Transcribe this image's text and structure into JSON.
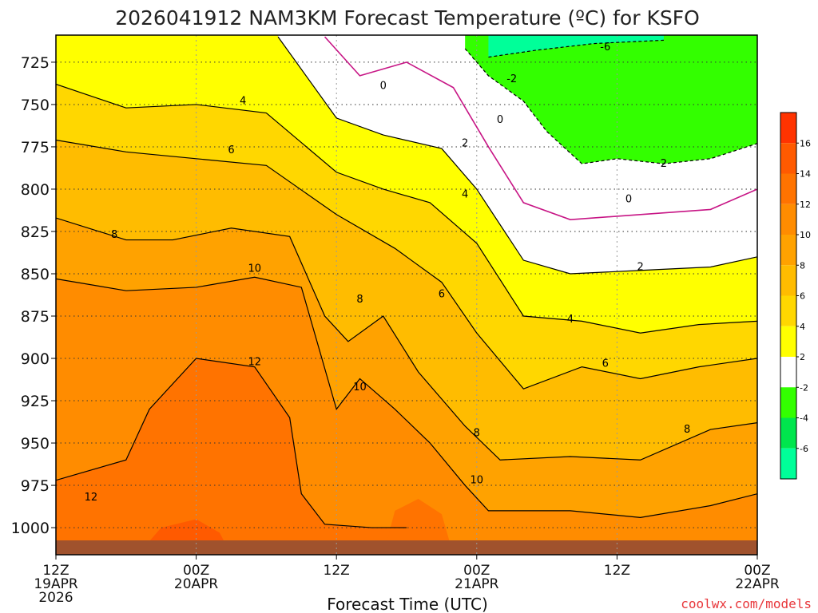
{
  "chart_data": {
    "type": "heatmap",
    "title": "2026041912 NAM3KM Forecast Temperature (ºC) for KSFO",
    "xlabel": "Forecast Time (UTC)",
    "ylabel": "",
    "credit": "coolwx.com/models",
    "y_ticks": [
      "725",
      "750",
      "775",
      "800",
      "825",
      "850",
      "875",
      "900",
      "925",
      "950",
      "975",
      "1000"
    ],
    "y_values": [
      725,
      750,
      775,
      800,
      825,
      850,
      875,
      900,
      925,
      950,
      975,
      1000
    ],
    "ylim": [
      709,
      1016
    ],
    "x_ticks": [
      {
        "hour": 0,
        "lines": [
          "12Z",
          "19APR",
          "2026"
        ]
      },
      {
        "hour": 12,
        "lines": [
          "00Z",
          "20APR"
        ]
      },
      {
        "hour": 24,
        "lines": [
          "12Z"
        ]
      },
      {
        "hour": 36,
        "lines": [
          "00Z",
          "21APR"
        ]
      },
      {
        "hour": 48,
        "lines": [
          "12Z"
        ]
      },
      {
        "hour": 60,
        "lines": [
          "00Z",
          "22APR"
        ]
      }
    ],
    "xlim": [
      0,
      60
    ],
    "colorbar": {
      "ticks": [
        "16",
        "14",
        "12",
        "10",
        "8",
        "6",
        "4",
        "2",
        "-2",
        "-4",
        "-6"
      ],
      "bands": [
        {
          "range": [
            16,
            18
          ],
          "color": "#ff3300"
        },
        {
          "range": [
            14,
            16
          ],
          "color": "#ff5a00"
        },
        {
          "range": [
            12,
            14
          ],
          "color": "#ff7300"
        },
        {
          "range": [
            10,
            12
          ],
          "color": "#ff8c00"
        },
        {
          "range": [
            8,
            10
          ],
          "color": "#ffa200"
        },
        {
          "range": [
            6,
            8
          ],
          "color": "#ffbc00"
        },
        {
          "range": [
            4,
            6
          ],
          "color": "#ffd700"
        },
        {
          "range": [
            2,
            4
          ],
          "color": "#ffff00"
        },
        {
          "range": [
            -2,
            2
          ],
          "color": "#ffffff"
        },
        {
          "range": [
            -4,
            -2
          ],
          "color": "#33ff00"
        },
        {
          "range": [
            -6,
            -4
          ],
          "color": "#00e64d"
        },
        {
          "range": [
            -8,
            -6
          ],
          "color": "#00ff99"
        }
      ]
    },
    "contours": [
      {
        "level": "-6",
        "points": [
          [
            37,
            722
          ],
          [
            41,
            718
          ],
          [
            46,
            714
          ],
          [
            52,
            712
          ]
        ]
      },
      {
        "level": "-2",
        "points": [
          [
            35,
            717
          ],
          [
            37,
            733
          ],
          [
            40,
            748
          ],
          [
            42,
            766
          ],
          [
            45,
            785
          ],
          [
            48,
            782
          ],
          [
            52,
            785
          ],
          [
            56,
            782
          ],
          [
            60,
            773
          ]
        ]
      },
      {
        "level": "0",
        "points": [
          [
            23,
            710
          ],
          [
            26,
            733
          ],
          [
            30,
            725
          ],
          [
            34,
            740
          ],
          [
            37,
            775
          ],
          [
            40,
            808
          ],
          [
            44,
            818
          ],
          [
            50,
            815
          ],
          [
            56,
            812
          ],
          [
            60,
            800
          ]
        ]
      },
      {
        "level": "2",
        "points": [
          [
            19,
            710
          ],
          [
            24,
            758
          ],
          [
            28,
            768
          ],
          [
            33,
            776
          ],
          [
            36,
            800
          ],
          [
            40,
            842
          ],
          [
            44,
            850
          ],
          [
            50,
            848
          ],
          [
            56,
            846
          ],
          [
            60,
            840
          ]
        ]
      },
      {
        "level": "4",
        "points": [
          [
            0,
            738
          ],
          [
            6,
            752
          ],
          [
            12,
            750
          ],
          [
            18,
            755
          ],
          [
            24,
            790
          ],
          [
            28,
            800
          ],
          [
            32,
            808
          ],
          [
            36,
            832
          ],
          [
            40,
            875
          ],
          [
            45,
            878
          ],
          [
            50,
            885
          ],
          [
            55,
            880
          ],
          [
            60,
            878
          ]
        ]
      },
      {
        "level": "6",
        "points": [
          [
            0,
            771
          ],
          [
            6,
            778
          ],
          [
            12,
            782
          ],
          [
            18,
            786
          ],
          [
            24,
            815
          ],
          [
            29,
            835
          ],
          [
            33,
            855
          ],
          [
            36,
            885
          ],
          [
            40,
            918
          ],
          [
            45,
            905
          ],
          [
            50,
            912
          ],
          [
            55,
            905
          ],
          [
            60,
            900
          ]
        ]
      },
      {
        "level": "8",
        "points": [
          [
            0,
            817
          ],
          [
            6,
            830
          ],
          [
            10,
            830
          ],
          [
            15,
            823
          ],
          [
            20,
            828
          ],
          [
            23,
            875
          ],
          [
            25,
            890
          ],
          [
            28,
            875
          ],
          [
            31,
            908
          ],
          [
            35,
            940
          ],
          [
            38,
            960
          ],
          [
            44,
            958
          ],
          [
            50,
            960
          ],
          [
            56,
            942
          ],
          [
            60,
            938
          ]
        ]
      },
      {
        "level": "10",
        "points": [
          [
            0,
            853
          ],
          [
            6,
            860
          ],
          [
            12,
            858
          ],
          [
            17,
            852
          ],
          [
            21,
            858
          ],
          [
            24,
            930
          ],
          [
            26,
            912
          ],
          [
            29,
            930
          ],
          [
            32,
            950
          ],
          [
            35,
            975
          ],
          [
            37,
            990
          ],
          [
            44,
            990
          ],
          [
            50,
            994
          ],
          [
            56,
            987
          ],
          [
            60,
            980
          ]
        ]
      },
      {
        "level": "12",
        "points": [
          [
            0,
            972
          ],
          [
            2,
            968
          ],
          [
            6,
            960
          ],
          [
            8,
            930
          ],
          [
            12,
            900
          ],
          [
            17,
            905
          ],
          [
            20,
            935
          ],
          [
            21,
            980
          ],
          [
            23,
            998
          ],
          [
            27,
            1000
          ],
          [
            30,
            1000
          ]
        ]
      }
    ],
    "contour_labels": [
      {
        "text": "-6",
        "hour": 47,
        "p": 716
      },
      {
        "text": "-2",
        "hour": 39,
        "p": 735
      },
      {
        "text": "0",
        "hour": 28,
        "p": 739
      },
      {
        "text": "0",
        "hour": 38,
        "p": 759
      },
      {
        "text": "0",
        "hour": 49,
        "p": 806
      },
      {
        "text": "2",
        "hour": 35,
        "p": 773
      },
      {
        "text": "2",
        "hour": 52,
        "p": 785
      },
      {
        "text": "2",
        "hour": 50,
        "p": 846
      },
      {
        "text": "4",
        "hour": 16,
        "p": 748
      },
      {
        "text": "4",
        "hour": 35,
        "p": 803
      },
      {
        "text": "4",
        "hour": 44,
        "p": 877
      },
      {
        "text": "6",
        "hour": 15,
        "p": 777
      },
      {
        "text": "6",
        "hour": 33,
        "p": 862
      },
      {
        "text": "6",
        "hour": 47,
        "p": 903
      },
      {
        "text": "8",
        "hour": 5,
        "p": 827
      },
      {
        "text": "8",
        "hour": 26,
        "p": 865
      },
      {
        "text": "8",
        "hour": 36,
        "p": 944
      },
      {
        "text": "8",
        "hour": 54,
        "p": 942
      },
      {
        "text": "10",
        "hour": 17,
        "p": 847
      },
      {
        "text": "10",
        "hour": 26,
        "p": 917
      },
      {
        "text": "10",
        "hour": 36,
        "p": 972
      },
      {
        "text": "12",
        "hour": 17,
        "p": 902
      },
      {
        "text": "12",
        "hour": 3,
        "p": 982
      }
    ]
  }
}
